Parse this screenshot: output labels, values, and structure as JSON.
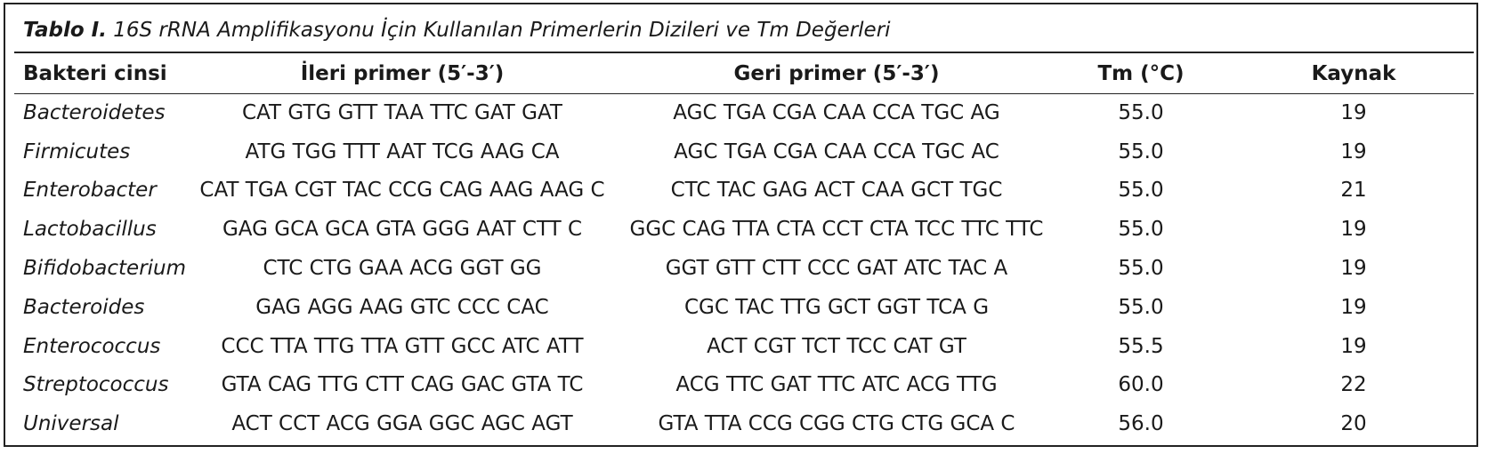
{
  "table": {
    "caption_label": "Tablo I.",
    "caption_text": "16S rRNA Amplifikasyonu İçin Kullanılan Primerlerin Dizileri ve Tm Değerleri",
    "headers": [
      "Bakteri cinsi",
      "İleri primer (5′-3′)",
      "Geri primer (5′-3′)",
      "Tm (°C)",
      "Kaynak"
    ],
    "rows": [
      [
        "Bacteroidetes",
        "CAT GTG GTT TAA TTC GAT GAT",
        "AGC TGA CGA CAA CCA TGC AG",
        "55.0",
        "19"
      ],
      [
        "Firmicutes",
        "ATG TGG TTT AAT TCG AAG CA",
        "AGC TGA CGA CAA CCA TGC AC",
        "55.0",
        "19"
      ],
      [
        "Enterobacter",
        "CAT TGA CGT TAC CCG CAG AAG AAG C",
        "CTC TAC GAG ACT CAA GCT TGC",
        "55.0",
        "21"
      ],
      [
        "Lactobacillus",
        "GAG GCA GCA GTA GGG AAT CTT C",
        "GGC CAG TTA CTA CCT CTA TCC TTC TTC",
        "55.0",
        "19"
      ],
      [
        "Bifidobacterium",
        "CTC CTG GAA ACG GGT GG",
        "GGT GTT CTT CCC GAT ATC TAC A",
        "55.0",
        "19"
      ],
      [
        "Bacteroides",
        "GAG AGG AAG GTC CCC CAC",
        "CGC TAC TTG GCT GGT TCA G",
        "55.0",
        "19"
      ],
      [
        "Enterococcus",
        "CCC TTA TTG TTA GTT GCC ATC ATT",
        "ACT CGT TCT TCC CAT GT",
        "55.5",
        "19"
      ],
      [
        "Streptococcus",
        "GTA CAG TTG CTT CAG GAC GTA TC",
        "ACG TTC GAT TTC ATC ACG TTG",
        "60.0",
        "22"
      ],
      [
        "Universal",
        "ACT CCT ACG GGA GGC AGC AGT",
        "GTA TTA CCG CGG CTG CTG GCA C",
        "56.0",
        "20"
      ]
    ]
  }
}
